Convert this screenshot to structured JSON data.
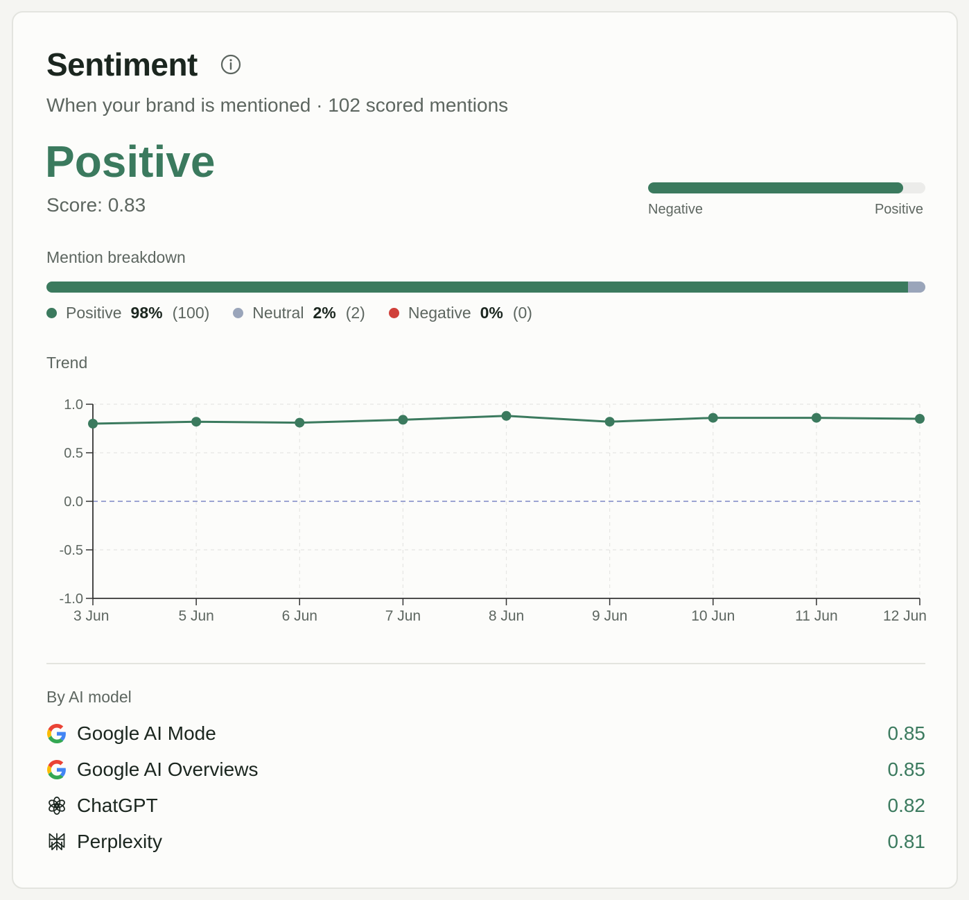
{
  "header": {
    "title": "Sentiment",
    "subtitle": "When your brand is mentioned · 102 scored mentions"
  },
  "summary": {
    "label": "Positive",
    "score_text": "Score: 0.83",
    "score": 0.83,
    "gauge_fill_fraction": 0.92,
    "gauge_left_label": "Negative",
    "gauge_right_label": "Positive"
  },
  "breakdown": {
    "title": "Mention breakdown",
    "items": [
      {
        "label": "Positive",
        "pct": "98%",
        "count": "(100)",
        "fraction": 0.98,
        "color": "#3b7a5e"
      },
      {
        "label": "Neutral",
        "pct": "2%",
        "count": "(2)",
        "fraction": 0.02,
        "color": "#9aa5ba"
      },
      {
        "label": "Negative",
        "pct": "0%",
        "count": "(0)",
        "fraction": 0.0,
        "color": "#d0403a"
      }
    ]
  },
  "trend": {
    "title": "Trend"
  },
  "chart_data": {
    "type": "line",
    "categories": [
      "3 Jun",
      "5 Jun",
      "6 Jun",
      "7 Jun",
      "8 Jun",
      "9 Jun",
      "10 Jun",
      "11 Jun",
      "12 Jun"
    ],
    "series": [
      {
        "values": [
          0.8,
          0.82,
          0.81,
          0.84,
          0.88,
          0.82,
          0.86,
          0.86,
          0.85
        ]
      }
    ],
    "y_ticks": [
      "1.0",
      "0.5",
      "0.0",
      "-0.5",
      "-1.0"
    ],
    "ylim": [
      -1,
      1
    ],
    "grid": true,
    "reference_line": 0,
    "line_color": "#3b7a5e",
    "reference_color": "#8f97cc"
  },
  "models": {
    "title": "By AI model",
    "items": [
      {
        "name": "Google AI Mode",
        "score": "0.85",
        "icon": "google-icon"
      },
      {
        "name": "Google AI Overviews",
        "score": "0.85",
        "icon": "google-icon"
      },
      {
        "name": "ChatGPT",
        "score": "0.82",
        "icon": "chatgpt-icon"
      },
      {
        "name": "Perplexity",
        "score": "0.81",
        "icon": "perplexity-icon"
      }
    ]
  }
}
